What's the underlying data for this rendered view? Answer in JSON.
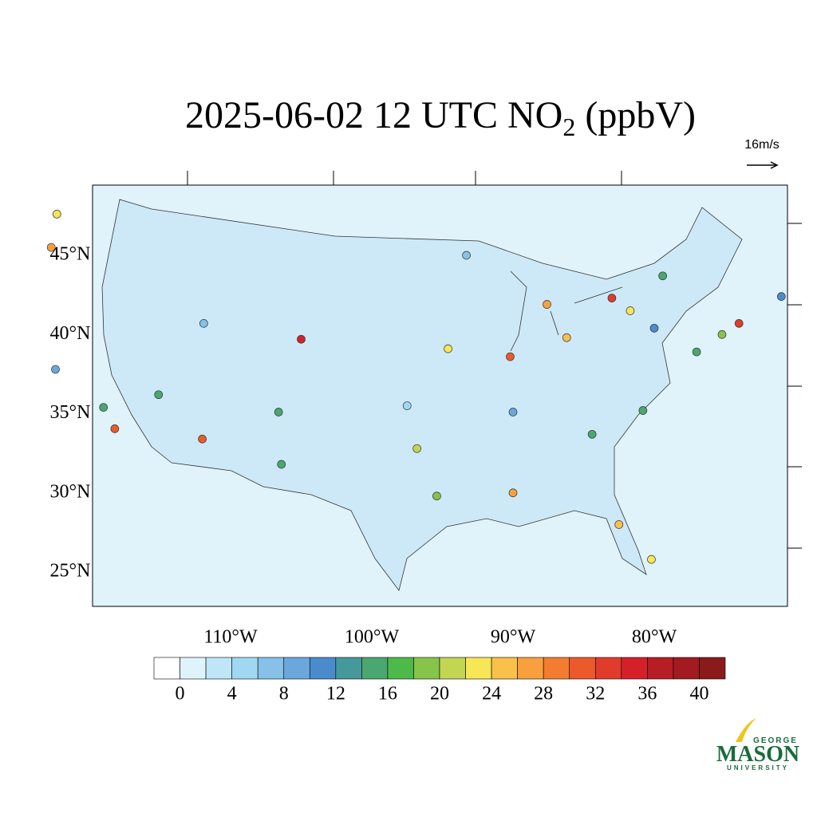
{
  "title": {
    "main": "2025-06-02 12 UTC NO",
    "subscript": "2",
    "rest": " (ppbV)"
  },
  "wind_reference": "16m/s",
  "map": {
    "lat_labels": [
      {
        "value": 45,
        "label": "45°N"
      },
      {
        "value": 40,
        "label": "40°N"
      },
      {
        "value": 35,
        "label": "35°N"
      },
      {
        "value": 30,
        "label": "30°N"
      },
      {
        "value": 25,
        "label": "25°N"
      }
    ],
    "lon_labels": [
      {
        "value": -110,
        "label": "110°W"
      },
      {
        "value": -100,
        "label": "100°W"
      },
      {
        "value": -90,
        "label": "90°W"
      },
      {
        "value": -80,
        "label": "80°W"
      }
    ],
    "stations": [
      {
        "lat": 47.6,
        "lon": -122.3,
        "value": 22
      },
      {
        "lat": 45.5,
        "lon": -122.7,
        "value": 26
      },
      {
        "lat": 34.05,
        "lon": -118.2,
        "value": 30
      },
      {
        "lat": 37.8,
        "lon": -122.4,
        "value": 8
      },
      {
        "lat": 35.4,
        "lon": -119.0,
        "value": 14
      },
      {
        "lat": 39.7,
        "lon": -105.0,
        "value": 34
      },
      {
        "lat": 40.7,
        "lon": -111.9,
        "value": 6
      },
      {
        "lat": 33.4,
        "lon": -112.0,
        "value": 30
      },
      {
        "lat": 31.8,
        "lon": -106.4,
        "value": 14
      },
      {
        "lat": 32.8,
        "lon": -96.8,
        "value": 20
      },
      {
        "lat": 29.8,
        "lon": -95.4,
        "value": 18
      },
      {
        "lat": 41.9,
        "lon": -87.6,
        "value": 26
      },
      {
        "lat": 42.3,
        "lon": -83.0,
        "value": 32
      },
      {
        "lat": 40.7,
        "lon": -74.0,
        "value": 32
      },
      {
        "lat": 40.0,
        "lon": -75.2,
        "value": 18
      },
      {
        "lat": 38.9,
        "lon": -77.0,
        "value": 14
      },
      {
        "lat": 33.7,
        "lon": -84.4,
        "value": 14
      },
      {
        "lat": 38.6,
        "lon": -90.2,
        "value": 30
      },
      {
        "lat": 39.1,
        "lon": -94.6,
        "value": 22
      },
      {
        "lat": 25.8,
        "lon": -80.2,
        "value": 22
      },
      {
        "lat": 28.0,
        "lon": -82.5,
        "value": 24
      },
      {
        "lat": 30.0,
        "lon": -90.0,
        "value": 26
      },
      {
        "lat": 39.8,
        "lon": -86.2,
        "value": 24
      },
      {
        "lat": 41.5,
        "lon": -81.7,
        "value": 22
      },
      {
        "lat": 42.4,
        "lon": -71.0,
        "value": 10
      },
      {
        "lat": 45.0,
        "lon": -93.3,
        "value": 6
      },
      {
        "lat": 36.2,
        "lon": -115.1,
        "value": 14
      },
      {
        "lat": 35.1,
        "lon": -106.6,
        "value": 14
      },
      {
        "lat": 35.5,
        "lon": -97.5,
        "value": 4
      },
      {
        "lat": 35.1,
        "lon": -90.0,
        "value": 8
      },
      {
        "lat": 35.2,
        "lon": -80.8,
        "value": 14
      },
      {
        "lat": 40.4,
        "lon": -80.0,
        "value": 10
      },
      {
        "lat": 43.7,
        "lon": -79.4,
        "value": 14
      }
    ]
  },
  "colorbar": {
    "colors": [
      "#ffffff",
      "#dff3fb",
      "#bfe6f7",
      "#9fd8f2",
      "#86c1e7",
      "#6aa7dc",
      "#4a8ccb",
      "#45999a",
      "#4aa770",
      "#4cb94a",
      "#86c44b",
      "#c2d652",
      "#f7e655",
      "#f9c04a",
      "#f8a03d",
      "#f47c30",
      "#ec5a2c",
      "#e13b2b",
      "#d5202a",
      "#b71d25",
      "#a21b21",
      "#8b1a1a"
    ],
    "step": 2,
    "ticks": [
      0,
      4,
      8,
      12,
      16,
      20,
      24,
      28,
      32,
      36,
      40
    ]
  },
  "logo": {
    "top": "GEORGE",
    "name": "MASON",
    "bottom": "UNIVERSITY"
  }
}
